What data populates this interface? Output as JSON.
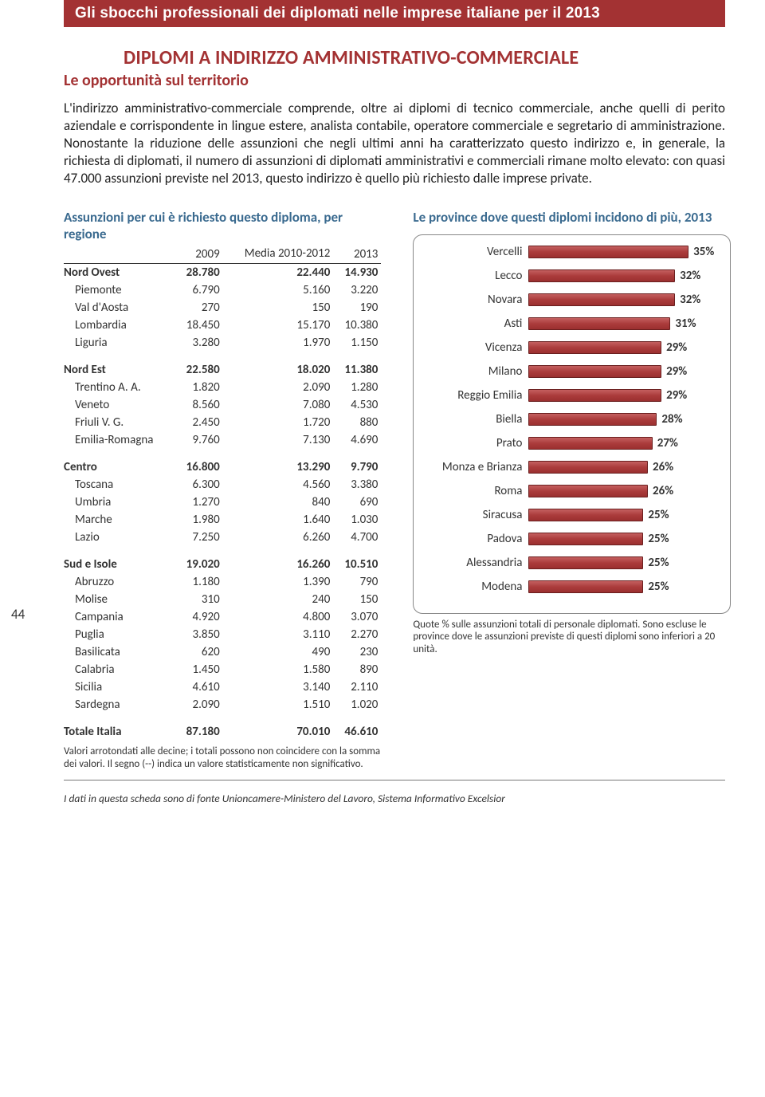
{
  "header": {
    "band": "Gli sbocchi professionali dei diplomati nelle imprese italiane per il 2013",
    "title": "DIPLOMI A INDIRIZZO AMMINISTRATIVO-COMMERCIALE",
    "subtitle": "Le opportunità sul territorio"
  },
  "body_paragraph": "L'indirizzo amministrativo-commerciale comprende, oltre ai diplomi di tecnico commerciale, anche quelli di perito aziendale e corrispondente in lingue estere, analista contabile, operatore commerciale e segretario di amministrazione. Nonostante la riduzione delle assunzioni che negli ultimi anni ha caratterizzato questo indirizzo e, in generale, la richiesta di diplomati, il numero di assunzioni di diplomati amministrativi e commerciali rimane molto elevato: con quasi 47.000 assunzioni previste nel 2013, questo indirizzo è quello più richiesto dalle imprese private.",
  "page_number": "44",
  "table": {
    "title": "Assunzioni per cui è richiesto questo diploma, per regione",
    "col_headers": [
      "2009",
      "Media 2010-2012",
      "2013"
    ],
    "groups": [
      {
        "group": "Nord Ovest",
        "totals": [
          "28.780",
          "22.440",
          "14.930"
        ],
        "rows": [
          {
            "label": "Piemonte",
            "vals": [
              "6.790",
              "5.160",
              "3.220"
            ]
          },
          {
            "label": "Val d'Aosta",
            "vals": [
              "270",
              "150",
              "190"
            ]
          },
          {
            "label": "Lombardia",
            "vals": [
              "18.450",
              "15.170",
              "10.380"
            ]
          },
          {
            "label": "Liguria",
            "vals": [
              "3.280",
              "1.970",
              "1.150"
            ]
          }
        ]
      },
      {
        "group": "Nord Est",
        "totals": [
          "22.580",
          "18.020",
          "11.380"
        ],
        "rows": [
          {
            "label": "Trentino A. A.",
            "vals": [
              "1.820",
              "2.090",
              "1.280"
            ]
          },
          {
            "label": "Veneto",
            "vals": [
              "8.560",
              "7.080",
              "4.530"
            ]
          },
          {
            "label": "Friuli V. G.",
            "vals": [
              "2.450",
              "1.720",
              "880"
            ]
          },
          {
            "label": "Emilia-Romagna",
            "vals": [
              "9.760",
              "7.130",
              "4.690"
            ]
          }
        ]
      },
      {
        "group": "Centro",
        "totals": [
          "16.800",
          "13.290",
          "9.790"
        ],
        "rows": [
          {
            "label": "Toscana",
            "vals": [
              "6.300",
              "4.560",
              "3.380"
            ]
          },
          {
            "label": "Umbria",
            "vals": [
              "1.270",
              "840",
              "690"
            ]
          },
          {
            "label": "Marche",
            "vals": [
              "1.980",
              "1.640",
              "1.030"
            ]
          },
          {
            "label": "Lazio",
            "vals": [
              "7.250",
              "6.260",
              "4.700"
            ]
          }
        ]
      },
      {
        "group": "Sud e Isole",
        "totals": [
          "19.020",
          "16.260",
          "10.510"
        ],
        "rows": [
          {
            "label": "Abruzzo",
            "vals": [
              "1.180",
              "1.390",
              "790"
            ]
          },
          {
            "label": "Molise",
            "vals": [
              "310",
              "240",
              "150"
            ]
          },
          {
            "label": "Campania",
            "vals": [
              "4.920",
              "4.800",
              "3.070"
            ]
          },
          {
            "label": "Puglia",
            "vals": [
              "3.850",
              "3.110",
              "2.270"
            ]
          },
          {
            "label": "Basilicata",
            "vals": [
              "620",
              "490",
              "230"
            ]
          },
          {
            "label": "Calabria",
            "vals": [
              "1.450",
              "1.580",
              "890"
            ]
          },
          {
            "label": "Sicilia",
            "vals": [
              "4.610",
              "3.140",
              "2.110"
            ]
          },
          {
            "label": "Sardegna",
            "vals": [
              "2.090",
              "1.510",
              "1.020"
            ]
          }
        ]
      },
      {
        "group": "Totale Italia",
        "totals": [
          "87.180",
          "70.010",
          "46.610"
        ],
        "rows": []
      }
    ],
    "footnote": "Valori arrotondati alle decine; i totali possono non coincidere con la somma dei valori. Il segno (--) indica un valore statisticamente non significativo."
  },
  "chart": {
    "title": "Le province dove questi diplomi incidono di più, 2013",
    "type": "bar-horizontal",
    "max": 35,
    "bar_color": "#ab3c3c",
    "bar_border": "#6a1f1f",
    "frame_border": "#888888",
    "items": [
      {
        "label": "Vercelli",
        "value": 35,
        "display": "35%"
      },
      {
        "label": "Lecco",
        "value": 32,
        "display": "32%"
      },
      {
        "label": "Novara",
        "value": 32,
        "display": "32%"
      },
      {
        "label": "Asti",
        "value": 31,
        "display": "31%"
      },
      {
        "label": "Vicenza",
        "value": 29,
        "display": "29%"
      },
      {
        "label": "Milano",
        "value": 29,
        "display": "29%"
      },
      {
        "label": "Reggio Emilia",
        "value": 29,
        "display": "29%"
      },
      {
        "label": "Biella",
        "value": 28,
        "display": "28%"
      },
      {
        "label": "Prato",
        "value": 27,
        "display": "27%"
      },
      {
        "label": "Monza e Brianza",
        "value": 26,
        "display": "26%"
      },
      {
        "label": "Roma",
        "value": 26,
        "display": "26%"
      },
      {
        "label": "Siracusa",
        "value": 25,
        "display": "25%"
      },
      {
        "label": "Padova",
        "value": 25,
        "display": "25%"
      },
      {
        "label": "Alessandria",
        "value": 25,
        "display": "25%"
      },
      {
        "label": "Modena",
        "value": 25,
        "display": "25%"
      }
    ],
    "footnote": "Quote % sulle assunzioni totali di personale diplomati. Sono escluse le province dove le assunzioni previste di questi diplomi sono inferiori a 20 unità."
  },
  "source": "I dati in questa scheda sono di fonte Unioncamere-Ministero del Lavoro, Sistema Informativo Excelsior",
  "colors": {
    "brand_red": "#a33233",
    "steel_blue": "#3a6a8f"
  }
}
